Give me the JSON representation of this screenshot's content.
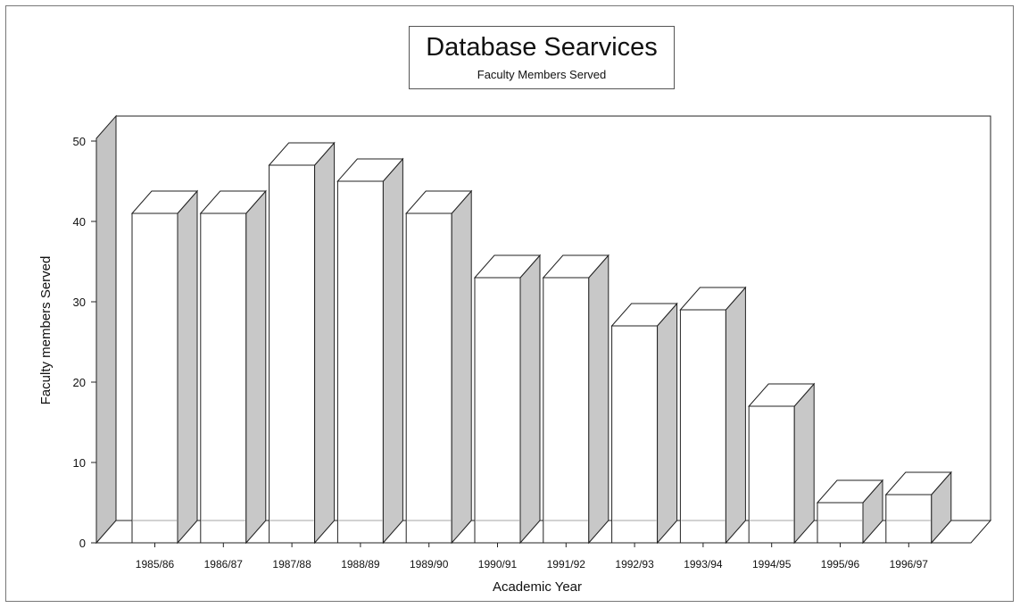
{
  "chart_data": {
    "type": "bar",
    "title": "Database Searvices",
    "subtitle": "Faculty Members Served",
    "xlabel": "Academic Year",
    "ylabel": "Faculty members Served",
    "categories": [
      "1985/86",
      "1986/87",
      "1987/88",
      "1988/89",
      "1989/90",
      "1990/91",
      "1991/92",
      "1992/93",
      "1993/94",
      "1994/95",
      "1995/96",
      "1996/97"
    ],
    "values": [
      41,
      41,
      47,
      45,
      41,
      33,
      33,
      27,
      29,
      17,
      5,
      6
    ],
    "ylim": [
      0,
      50
    ],
    "yticks": [
      "0",
      "10",
      "20",
      "30",
      "40",
      "50"
    ],
    "grid": false,
    "style": "3d",
    "colors": {
      "bar_front": "#ffffff",
      "bar_side": "#c8c8c8",
      "wall": "#c4c4c4",
      "outline": "#222222"
    }
  }
}
